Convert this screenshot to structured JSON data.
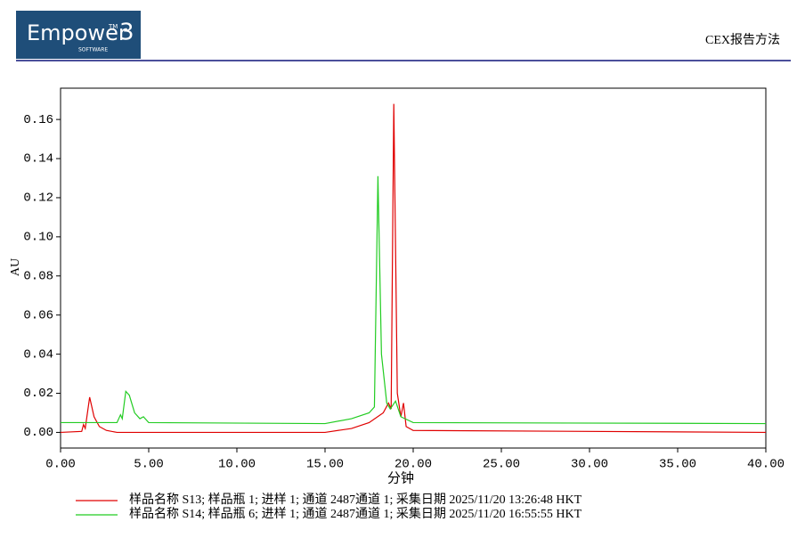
{
  "header": {
    "logo": "Empower",
    "logo_tm": "TM",
    "logo_version": "3",
    "logo_sub": "SOFTWARE",
    "report": "CEX报告方法"
  },
  "chart_data": {
    "type": "line",
    "x_label": "分钟",
    "y_label": "AU",
    "xlim": [
      0,
      40
    ],
    "ylim": [
      -0.008,
      0.176
    ],
    "xticks": [
      {
        "value": 0,
        "label": "0.00"
      },
      {
        "value": 5,
        "label": "5.00"
      },
      {
        "value": 10,
        "label": "10.00"
      },
      {
        "value": 15,
        "label": "15.00"
      },
      {
        "value": 20,
        "label": "20.00"
      },
      {
        "value": 25,
        "label": "25.00"
      },
      {
        "value": 30,
        "label": "30.00"
      },
      {
        "value": 35,
        "label": "35.00"
      },
      {
        "value": 40,
        "label": "40.00"
      }
    ],
    "yticks": [
      {
        "value": 0,
        "label": "0.00"
      },
      {
        "value": 0.02,
        "label": "0.02"
      },
      {
        "value": 0.04,
        "label": "0.04"
      },
      {
        "value": 0.06,
        "label": "0.06"
      },
      {
        "value": 0.08,
        "label": "0.08"
      },
      {
        "value": 0.1,
        "label": "0.10"
      },
      {
        "value": 0.12,
        "label": "0.12"
      },
      {
        "value": 0.14,
        "label": "0.14"
      },
      {
        "value": 0.16,
        "label": "0.16"
      }
    ],
    "series": [
      {
        "name": "样品名称 S13; 样品瓶 1; 进样 1; 通道 2487通道 1; 采集日期 2025/11/20 13:26:48 HKT",
        "color": "#e00000",
        "x": [
          0,
          1.2,
          1.3,
          1.4,
          1.65,
          1.9,
          2.2,
          2.6,
          3.2,
          15,
          16.5,
          17.5,
          18.3,
          18.6,
          18.75,
          18.9,
          19.1,
          19.3,
          19.45,
          19.6,
          20,
          40
        ],
        "values": [
          0,
          0.0005,
          0.004,
          0.002,
          0.018,
          0.008,
          0.003,
          0.001,
          0,
          0,
          0.002,
          0.005,
          0.01,
          0.015,
          0.012,
          0.168,
          0.02,
          0.008,
          0.015,
          0.003,
          0.001,
          0
        ]
      },
      {
        "name": "样品名称 S14; 样品瓶 6; 进样 1; 通道 2487通道 1; 采集日期 2025/11/20 16:55:55 HKT",
        "color": "#22cc22",
        "x": [
          0,
          3.2,
          3.4,
          3.5,
          3.7,
          3.9,
          4.2,
          4.5,
          4.7,
          5,
          15,
          16.5,
          17.5,
          17.8,
          18,
          18.2,
          18.5,
          18.7,
          19,
          19.3,
          20,
          40
        ],
        "values": [
          0.005,
          0.005,
          0.009,
          0.007,
          0.021,
          0.019,
          0.01,
          0.007,
          0.008,
          0.005,
          0.0045,
          0.007,
          0.01,
          0.013,
          0.131,
          0.04,
          0.015,
          0.012,
          0.016,
          0.008,
          0.005,
          0.0045
        ]
      }
    ]
  }
}
